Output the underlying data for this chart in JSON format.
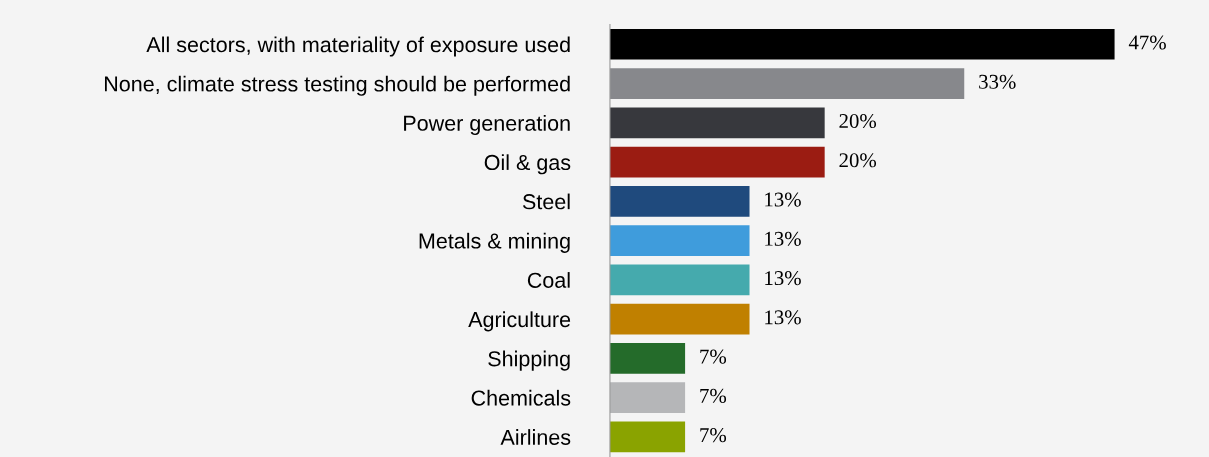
{
  "chart_data": {
    "type": "bar",
    "orientation": "horizontal",
    "tick_labels": "y",
    "grid": false,
    "legend": false,
    "categories": [
      "All sectors, with materiality of exposure used",
      "None, climate stress testing should be performed",
      "Power generation",
      "Oil & gas",
      "Steel",
      "Metals & mining",
      "Coal",
      "Agriculture",
      "Shipping",
      "Chemicals",
      "Airlines"
    ],
    "values": [
      47,
      33,
      20,
      20,
      13,
      13,
      13,
      13,
      7,
      7,
      7
    ],
    "value_labels": [
      "47%",
      "33%",
      "20%",
      "20%",
      "13%",
      "13%",
      "13%",
      "13%",
      "7%",
      "7%",
      "7%"
    ],
    "colors": [
      "#000000",
      "#87888c",
      "#37383d",
      "#9b1c12",
      "#1f4a7d",
      "#3f9cdc",
      "#45aaad",
      "#c08000",
      "#246b2a",
      "#b5b6b8",
      "#8aa300"
    ]
  }
}
